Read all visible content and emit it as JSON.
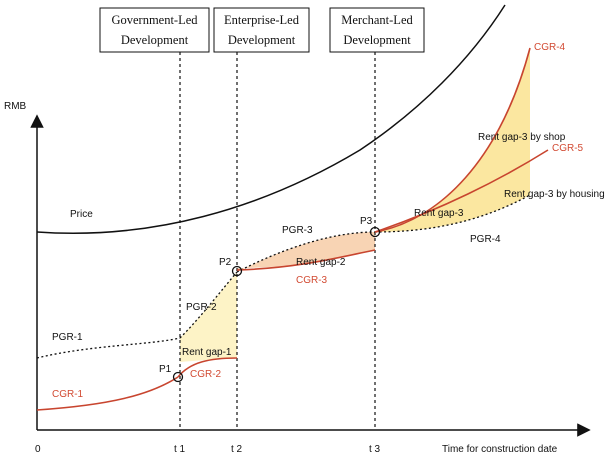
{
  "axes": {
    "y_label": "RMB",
    "x_label": "Time for construction date",
    "origin_label": "0",
    "ticks": [
      "t 1",
      "t 2",
      "t 3"
    ]
  },
  "phases": [
    {
      "line1": "Government-Led",
      "line2": "Development"
    },
    {
      "line1": "Enterprise-Led",
      "line2": "Development"
    },
    {
      "line1": "Merchant-Led",
      "line2": "Development"
    }
  ],
  "curves": {
    "price": "Price",
    "pgr1": "PGR-1",
    "pgr2": "PGR-2",
    "pgr3": "PGR-3",
    "pgr4": "PGR-4",
    "cgr1": "CGR-1",
    "cgr2": "CGR-2",
    "cgr3": "CGR-3",
    "cgr4": "CGR-4",
    "cgr5": "CGR-5"
  },
  "points": {
    "p1": "P1",
    "p2": "P2",
    "p3": "P3"
  },
  "gaps": {
    "gap1": "Rent gap-1",
    "gap2": "Rent gap-2",
    "gap3": "Rent gap-3",
    "gap3_shop": "Rent gap-3 by shop",
    "gap3_housing": "Rent gap-3 by housing"
  },
  "colors": {
    "curve_red": "#c8452f",
    "label_red": "#d24a32",
    "gap_yellow": "#fbe7a0",
    "gap_light_yellow": "#fdf3c6",
    "gap_orange": "#f8d4b4",
    "black": "#111111"
  }
}
